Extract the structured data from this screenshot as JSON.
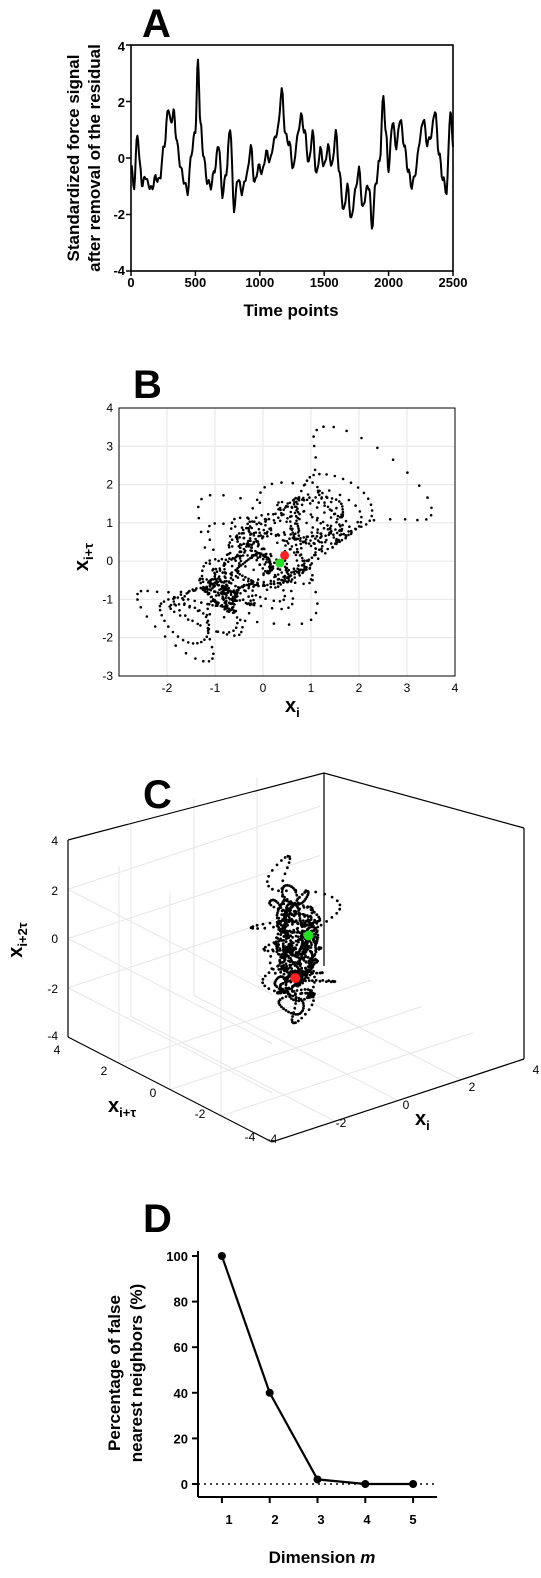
{
  "panels": {
    "a": {
      "letter": "A"
    },
    "b": {
      "letter": "B"
    },
    "c": {
      "letter": "C"
    },
    "d": {
      "letter": "D"
    }
  },
  "colors": {
    "line": "#000000",
    "grid": "#e6e6e6",
    "start_marker": "#ff2020",
    "end_marker": "#22dd22"
  },
  "chart_data": [
    {
      "id": "A",
      "type": "line",
      "ylabel_line1": "Standardized force signal",
      "ylabel_line2": "after removal of the residual",
      "xlabel": "Time points",
      "xlim": [
        0,
        2500
      ],
      "ylim": [
        -4,
        4
      ],
      "xticks": [
        "0",
        "500",
        "1000",
        "1500",
        "2000",
        "2500"
      ],
      "yticks": [
        "-4",
        "-2",
        "0",
        "2",
        "4"
      ],
      "series": [
        {
          "x": [
            0,
            25,
            50,
            70,
            90,
            110,
            130,
            160,
            190,
            220,
            260,
            290,
            310,
            330,
            350,
            380,
            410,
            440,
            470,
            500,
            520,
            540,
            560,
            590,
            620,
            650,
            680,
            710,
            740,
            770,
            800,
            830,
            860,
            900,
            930,
            960,
            990,
            1020,
            1050,
            1080,
            1110,
            1140,
            1170,
            1200,
            1230,
            1260,
            1290,
            1320,
            1350,
            1380,
            1410,
            1440,
            1470,
            1500,
            1530,
            1560,
            1590,
            1620,
            1650,
            1680,
            1710,
            1740,
            1770,
            1800,
            1830,
            1850,
            1870,
            1900,
            1930,
            1960,
            1980,
            2000,
            2030,
            2060,
            2090,
            2120,
            2150,
            2180,
            2210,
            2240,
            2270,
            2300,
            2330,
            2360,
            2390,
            2420,
            2450,
            2480,
            2500
          ],
          "y": [
            -0.3,
            -1.0,
            0.9,
            -0.3,
            -1.0,
            -0.6,
            -0.9,
            -1.1,
            -0.7,
            -0.8,
            0.5,
            1.8,
            1.2,
            1.7,
            0.8,
            -0.2,
            -0.8,
            -1.2,
            0.2,
            1.0,
            3.4,
            1.2,
            0.2,
            -0.8,
            -1.0,
            -0.4,
            0.5,
            -1.3,
            -0.5,
            1.1,
            -1.8,
            -0.7,
            -1.2,
            -0.6,
            0.4,
            -0.9,
            -0.3,
            -0.5,
            0.2,
            -0.1,
            0.6,
            1.0,
            2.4,
            0.8,
            0.5,
            -0.4,
            0.7,
            1.5,
            0.9,
            -0.2,
            0.9,
            -0.6,
            0.3,
            -0.3,
            0.4,
            -0.3,
            0.9,
            -0.6,
            -1.9,
            -1.0,
            -2.2,
            -1.2,
            -0.4,
            -1.8,
            -1.1,
            -1.0,
            -2.5,
            -0.9,
            -0.1,
            2.2,
            0.8,
            -0.4,
            1.3,
            0.4,
            1.4,
            0.5,
            -0.4,
            -1.0,
            -0.5,
            0.6,
            1.4,
            0.5,
            0.8,
            1.7,
            0.2,
            -0.7,
            -1.2,
            1.7,
            0.4
          ]
        }
      ]
    },
    {
      "id": "B",
      "type": "scatter",
      "xlabel": "x",
      "xlabel_sub": "i",
      "ylabel": "x",
      "ylabel_sub": "i+τ",
      "xlim": [
        -3,
        4
      ],
      "ylim": [
        -3,
        4
      ],
      "xticks": [
        "-2",
        "-1",
        "0",
        "1",
        "2",
        "3",
        "4"
      ],
      "yticks": [
        "-3",
        "-2",
        "-1",
        "0",
        "1",
        "2",
        "3",
        "4"
      ],
      "grid": true,
      "start_point": {
        "x": 0.45,
        "y": 0.15
      },
      "end_point": {
        "x": 0.35,
        "y": -0.05
      }
    },
    {
      "id": "C",
      "type": "scatter",
      "xlabel": "x",
      "xlabel_sub": "i",
      "ylabel": "x",
      "ylabel_sub": "i+τ",
      "zlabel": "x",
      "zlabel_sub": "i+2τ",
      "xticks": [
        "-4",
        "-2",
        "0",
        "2",
        "4"
      ],
      "yticks": [
        "-4",
        "-2",
        "0",
        "2",
        "4"
      ],
      "zticks": [
        "-4",
        "-2",
        "0",
        "2",
        "4"
      ],
      "grid": true,
      "start_point": {
        "x": 0.3,
        "y": 0.4,
        "z": -1.5
      },
      "end_point": {
        "x": 0.4,
        "y": 0.0,
        "z": 0.4
      }
    },
    {
      "id": "D",
      "type": "line",
      "xlabel": "Dimension",
      "xlabel_italic": "m",
      "ylabel_line1": "Percentage of false",
      "ylabel_line2": "nearest neighbors (%)",
      "xlim": [
        0.5,
        5.5
      ],
      "ylim": [
        0,
        100
      ],
      "xticks": [
        "1",
        "2",
        "3",
        "4",
        "5"
      ],
      "yticks": [
        "0",
        "20",
        "40",
        "60",
        "80",
        "100"
      ],
      "series": [
        {
          "x": [
            1,
            2,
            3,
            4,
            5
          ],
          "y": [
            100,
            40,
            2,
            0,
            0
          ]
        }
      ],
      "reference_line_y": 0
    }
  ]
}
